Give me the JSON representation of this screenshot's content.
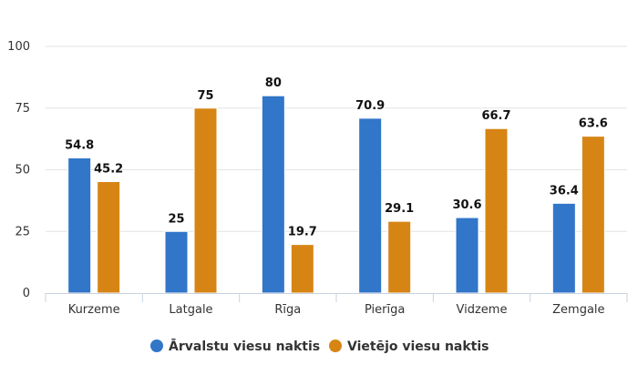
{
  "chart_data": {
    "type": "bar",
    "categories": [
      "Kurzeme",
      "Latgale",
      "Rīga",
      "Pierīga",
      "Vidzeme",
      "Zemgale"
    ],
    "series": [
      {
        "name": "Ārvalstu viesu naktis",
        "values": [
          54.8,
          25,
          80,
          70.9,
          30.6,
          36.4
        ],
        "color": "#3176c8"
      },
      {
        "name": "Vietējo viesu naktis",
        "values": [
          45.2,
          75,
          19.7,
          29.1,
          66.7,
          63.6
        ],
        "color": "#d68515"
      }
    ],
    "ylim": [
      0,
      100
    ],
    "yticks": [
      0,
      25,
      50,
      75,
      100
    ],
    "grid": true,
    "legend": "bottom-center",
    "title": "",
    "xlabel": "",
    "ylabel": ""
  }
}
